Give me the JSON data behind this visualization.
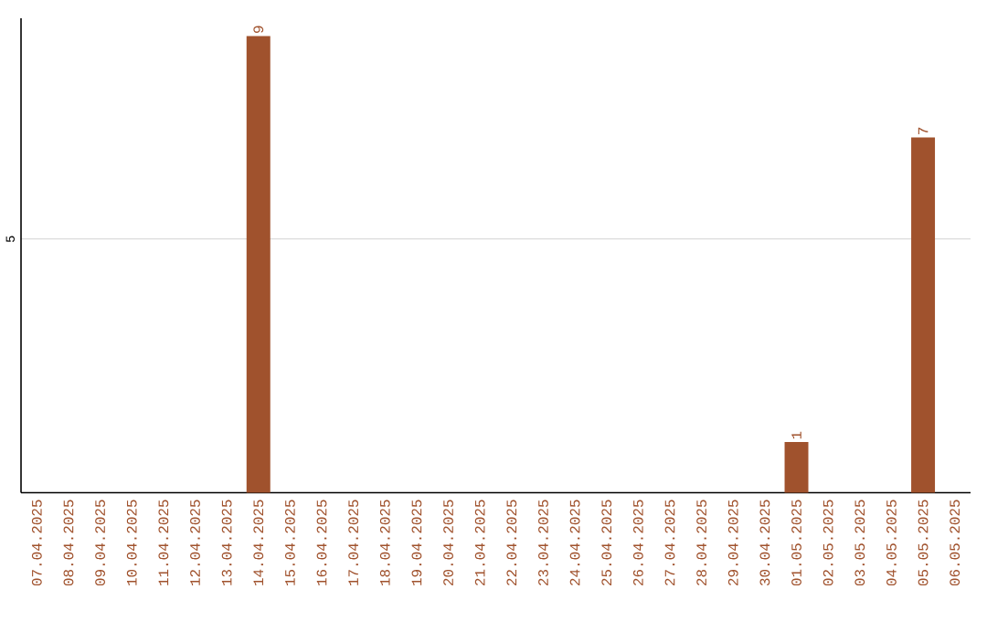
{
  "chart_data": {
    "type": "bar",
    "categories": [
      "07.04.2025",
      "08.04.2025",
      "09.04.2025",
      "10.04.2025",
      "11.04.2025",
      "12.04.2025",
      "13.04.2025",
      "14.04.2025",
      "15.04.2025",
      "16.04.2025",
      "17.04.2025",
      "18.04.2025",
      "19.04.2025",
      "20.04.2025",
      "21.04.2025",
      "22.04.2025",
      "23.04.2025",
      "24.04.2025",
      "25.04.2025",
      "26.04.2025",
      "27.04.2025",
      "28.04.2025",
      "29.04.2025",
      "30.04.2025",
      "01.05.2025",
      "02.05.2025",
      "03.05.2025",
      "04.05.2025",
      "05.05.2025",
      "06.05.2025"
    ],
    "values": [
      0,
      0,
      0,
      0,
      0,
      0,
      0,
      9,
      0,
      0,
      0,
      0,
      0,
      0,
      0,
      0,
      0,
      0,
      0,
      0,
      0,
      0,
      0,
      0,
      1,
      0,
      0,
      0,
      7,
      0
    ],
    "value_labels": [
      null,
      null,
      null,
      null,
      null,
      null,
      null,
      "9",
      null,
      null,
      null,
      null,
      null,
      null,
      null,
      null,
      null,
      null,
      null,
      null,
      null,
      null,
      null,
      null,
      "1",
      null,
      null,
      null,
      "7",
      null
    ],
    "color": "#a0522d",
    "ylim": [
      0,
      9.35
    ],
    "yticks": [
      5
    ],
    "grid": "y"
  }
}
